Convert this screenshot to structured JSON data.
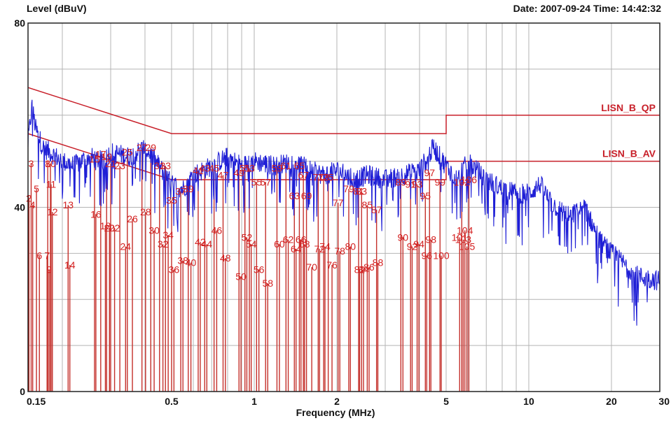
{
  "header": {
    "ylabel": "Level (dBuV)",
    "date_label": "Date: 2007-09-24",
    "time_label": "Time: 14:42:32"
  },
  "chart_data": {
    "type": "line",
    "xlabel": "Frequency (MHz)",
    "ylabel": "Level (dBuV)",
    "x_scale": "log",
    "xlim": [
      0.15,
      30
    ],
    "ylim": [
      0,
      80
    ],
    "x_ticks": [
      {
        "v": 0.15,
        "label": "0.15"
      },
      {
        "v": 0.5,
        "label": "0.5"
      },
      {
        "v": 1,
        "label": "1"
      },
      {
        "v": 2,
        "label": "2"
      },
      {
        "v": 5,
        "label": "5"
      },
      {
        "v": 10,
        "label": "10"
      },
      {
        "v": 20,
        "label": "20"
      },
      {
        "v": 30,
        "label": "30"
      }
    ],
    "y_ticks": [
      {
        "v": 0,
        "label": "0"
      },
      {
        "v": 40,
        "label": "40"
      },
      {
        "v": 80,
        "label": "80"
      }
    ],
    "grid": true,
    "colors": {
      "trace": "#1f1fd6",
      "limit": "#c8202a",
      "marker": "#d42020",
      "grid": "#b4b4b4"
    },
    "limit_lines": [
      {
        "name": "LISN_B_QP",
        "points": [
          [
            0.15,
            66
          ],
          [
            0.5,
            56
          ],
          [
            5,
            56
          ],
          [
            5,
            60
          ],
          [
            30,
            60
          ]
        ]
      },
      {
        "name": "LISN_B_AV",
        "points": [
          [
            0.15,
            56
          ],
          [
            0.5,
            46
          ],
          [
            5,
            46
          ],
          [
            5,
            50
          ],
          [
            30,
            50
          ]
        ]
      }
    ],
    "trace_envelope": [
      [
        0.15,
        54
      ],
      [
        0.155,
        62
      ],
      [
        0.16,
        57
      ],
      [
        0.17,
        53
      ],
      [
        0.18,
        52
      ],
      [
        0.2,
        50
      ],
      [
        0.22,
        49
      ],
      [
        0.25,
        51
      ],
      [
        0.28,
        50
      ],
      [
        0.3,
        52
      ],
      [
        0.35,
        51
      ],
      [
        0.4,
        53
      ],
      [
        0.45,
        49
      ],
      [
        0.5,
        45
      ],
      [
        0.55,
        44
      ],
      [
        0.6,
        47
      ],
      [
        0.7,
        49
      ],
      [
        0.8,
        51
      ],
      [
        0.9,
        49
      ],
      [
        1.0,
        50
      ],
      [
        1.2,
        49
      ],
      [
        1.4,
        50
      ],
      [
        1.6,
        48
      ],
      [
        1.8,
        47
      ],
      [
        2.0,
        48
      ],
      [
        2.3,
        46
      ],
      [
        2.6,
        47
      ],
      [
        3.0,
        46
      ],
      [
        3.5,
        47
      ],
      [
        4.0,
        48
      ],
      [
        4.5,
        53
      ],
      [
        5.0,
        49
      ],
      [
        5.5,
        46
      ],
      [
        6.0,
        50
      ],
      [
        7.0,
        46
      ],
      [
        8.0,
        44
      ],
      [
        9.0,
        43
      ],
      [
        10.0,
        43
      ],
      [
        11.0,
        45
      ],
      [
        12.0,
        41
      ],
      [
        14.0,
        38
      ],
      [
        16.0,
        40
      ],
      [
        18.0,
        33
      ],
      [
        20.0,
        30
      ],
      [
        22.0,
        28
      ],
      [
        25.0,
        25
      ],
      [
        30.0,
        24
      ]
    ],
    "markers": [
      {
        "id": "1",
        "f": 0.1505,
        "level": 42.0
      },
      {
        "id": "2",
        "f": 0.1512,
        "level": 42.0
      },
      {
        "id": "3",
        "f": 0.154,
        "level": 49.5
      },
      {
        "id": "4",
        "f": 0.156,
        "level": 40.5
      },
      {
        "id": "5",
        "f": 0.161,
        "level": 44.0
      },
      {
        "id": "6",
        "f": 0.165,
        "level": 29.5
      },
      {
        "id": "7",
        "f": 0.176,
        "level": 29.5
      },
      {
        "id": "8",
        "f": 0.177,
        "level": 49.5
      },
      {
        "id": "9",
        "f": 0.179,
        "level": 26.5
      },
      {
        "id": "10",
        "f": 0.181,
        "level": 49.5
      },
      {
        "id": "11",
        "f": 0.182,
        "level": 45.0
      },
      {
        "id": "12",
        "f": 0.184,
        "level": 39.0
      },
      {
        "id": "13",
        "f": 0.21,
        "level": 40.5
      },
      {
        "id": "14",
        "f": 0.213,
        "level": 27.5
      },
      {
        "id": "15",
        "f": 0.262,
        "level": 50.5
      },
      {
        "id": "16",
        "f": 0.265,
        "level": 38.5
      },
      {
        "id": "17",
        "f": 0.276,
        "level": 51.5
      },
      {
        "id": "18",
        "f": 0.287,
        "level": 36.0
      },
      {
        "id": "19",
        "f": 0.29,
        "level": 51.0
      },
      {
        "id": "20",
        "f": 0.297,
        "level": 35.5
      },
      {
        "id": "21",
        "f": 0.3,
        "level": 49.5
      },
      {
        "id": "22",
        "f": 0.31,
        "level": 35.5
      },
      {
        "id": "23",
        "f": 0.324,
        "level": 49.0
      },
      {
        "id": "24",
        "f": 0.34,
        "level": 31.5
      },
      {
        "id": "25",
        "f": 0.345,
        "level": 52.0
      },
      {
        "id": "26",
        "f": 0.36,
        "level": 37.5
      },
      {
        "id": "27",
        "f": 0.39,
        "level": 53.0
      },
      {
        "id": "28",
        "f": 0.402,
        "level": 39.0
      },
      {
        "id": "29",
        "f": 0.42,
        "level": 53.0
      },
      {
        "id": "30",
        "f": 0.432,
        "level": 35.0
      },
      {
        "id": "31",
        "f": 0.452,
        "level": 49.0
      },
      {
        "id": "32",
        "f": 0.465,
        "level": 32.0
      },
      {
        "id": "33",
        "f": 0.475,
        "level": 49.0
      },
      {
        "id": "34",
        "f": 0.486,
        "level": 34.0
      },
      {
        "id": "35",
        "f": 0.5,
        "level": 41.5
      },
      {
        "id": "36",
        "f": 0.51,
        "level": 26.5
      },
      {
        "id": "37",
        "f": 0.54,
        "level": 43.5
      },
      {
        "id": "38",
        "f": 0.55,
        "level": 28.5
      },
      {
        "id": "39",
        "f": 0.575,
        "level": 44.0
      },
      {
        "id": "40",
        "f": 0.588,
        "level": 28.0
      },
      {
        "id": "41",
        "f": 0.625,
        "level": 48.0
      },
      {
        "id": "42",
        "f": 0.636,
        "level": 32.5
      },
      {
        "id": "43",
        "f": 0.66,
        "level": 48.5
      },
      {
        "id": "44",
        "f": 0.672,
        "level": 32.0
      },
      {
        "id": "45",
        "f": 0.714,
        "level": 48.5
      },
      {
        "id": "46",
        "f": 0.73,
        "level": 35.0
      },
      {
        "id": "47",
        "f": 0.77,
        "level": 47.0
      },
      {
        "id": "48",
        "f": 0.785,
        "level": 29.0
      },
      {
        "id": "49",
        "f": 0.88,
        "level": 47.5
      },
      {
        "id": "50",
        "f": 0.895,
        "level": 25.0
      },
      {
        "id": "51",
        "f": 0.925,
        "level": 48.5
      },
      {
        "id": "52",
        "f": 0.94,
        "level": 33.5
      },
      {
        "id": "53",
        "f": 0.96,
        "level": 48.5
      },
      {
        "id": "54",
        "f": 0.975,
        "level": 32.0
      },
      {
        "id": "55",
        "f": 1.02,
        "level": 45.5
      },
      {
        "id": "56",
        "f": 1.04,
        "level": 26.5
      },
      {
        "id": "57",
        "f": 1.1,
        "level": 45.5
      },
      {
        "id": "58",
        "f": 1.12,
        "level": 23.5
      },
      {
        "id": "59",
        "f": 1.21,
        "level": 48.5
      },
      {
        "id": "60",
        "f": 1.235,
        "level": 32.0
      },
      {
        "id": "61",
        "f": 1.305,
        "level": 49.0
      },
      {
        "id": "62",
        "f": 1.33,
        "level": 33.0
      },
      {
        "id": "63",
        "f": 1.4,
        "level": 42.5
      },
      {
        "id": "64",
        "f": 1.42,
        "level": 31.0
      },
      {
        "id": "65",
        "f": 1.46,
        "level": 49.0
      },
      {
        "id": "66",
        "f": 1.48,
        "level": 33.0
      },
      {
        "id": "67",
        "f": 1.51,
        "level": 47.0
      },
      {
        "id": "68",
        "f": 1.525,
        "level": 32.0
      },
      {
        "id": "69",
        "f": 1.55,
        "level": 42.5
      },
      {
        "id": "70",
        "f": 1.62,
        "level": 27.0
      },
      {
        "id": "71",
        "f": 1.71,
        "level": 46.5
      },
      {
        "id": "72",
        "f": 1.73,
        "level": 31.0
      },
      {
        "id": "73",
        "f": 1.79,
        "level": 46.5
      },
      {
        "id": "74",
        "f": 1.81,
        "level": 31.5
      },
      {
        "id": "75",
        "f": 1.86,
        "level": 46.5
      },
      {
        "id": "76",
        "f": 1.92,
        "level": 27.5
      },
      {
        "id": "77",
        "f": 2.02,
        "level": 41.0
      },
      {
        "id": "78",
        "f": 2.05,
        "level": 30.5
      },
      {
        "id": "79",
        "f": 2.21,
        "level": 44.0
      },
      {
        "id": "80",
        "f": 2.24,
        "level": 31.5
      },
      {
        "id": "81",
        "f": 2.4,
        "level": 43.5
      },
      {
        "id": "82",
        "f": 2.42,
        "level": 26.5
      },
      {
        "id": "83",
        "f": 2.46,
        "level": 43.5
      },
      {
        "id": "84",
        "f": 2.5,
        "level": 26.5
      },
      {
        "id": "85",
        "f": 2.58,
        "level": 40.5
      },
      {
        "id": "86",
        "f": 2.62,
        "level": 27.0
      },
      {
        "id": "87",
        "f": 2.79,
        "level": 39.5
      },
      {
        "id": "88",
        "f": 2.82,
        "level": 28.0
      },
      {
        "id": "89",
        "f": 3.42,
        "level": 45.5
      },
      {
        "id": "90",
        "f": 3.48,
        "level": 33.5
      },
      {
        "id": "91",
        "f": 3.71,
        "level": 45.0
      },
      {
        "id": "92",
        "f": 3.76,
        "level": 31.5
      },
      {
        "id": "93",
        "f": 3.92,
        "level": 45.0
      },
      {
        "id": "94",
        "f": 3.98,
        "level": 32.0
      },
      {
        "id": "95",
        "f": 4.2,
        "level": 42.5
      },
      {
        "id": "96",
        "f": 4.25,
        "level": 29.5
      },
      {
        "id": "97",
        "f": 4.35,
        "level": 47.5
      },
      {
        "id": "98",
        "f": 4.4,
        "level": 33.0
      },
      {
        "id": "99",
        "f": 4.75,
        "level": 45.5
      },
      {
        "id": "100",
        "f": 4.8,
        "level": 29.5
      },
      {
        "id": "101",
        "f": 5.6,
        "level": 33.5
      },
      {
        "id": "102",
        "f": 5.7,
        "level": 45.5
      },
      {
        "id": "103",
        "f": 5.77,
        "level": 33.0
      },
      {
        "id": "104",
        "f": 5.85,
        "level": 35.0
      },
      {
        "id": "105",
        "f": 5.95,
        "level": 31.5
      },
      {
        "id": "106",
        "f": 6.05,
        "level": 46.0
      }
    ]
  }
}
